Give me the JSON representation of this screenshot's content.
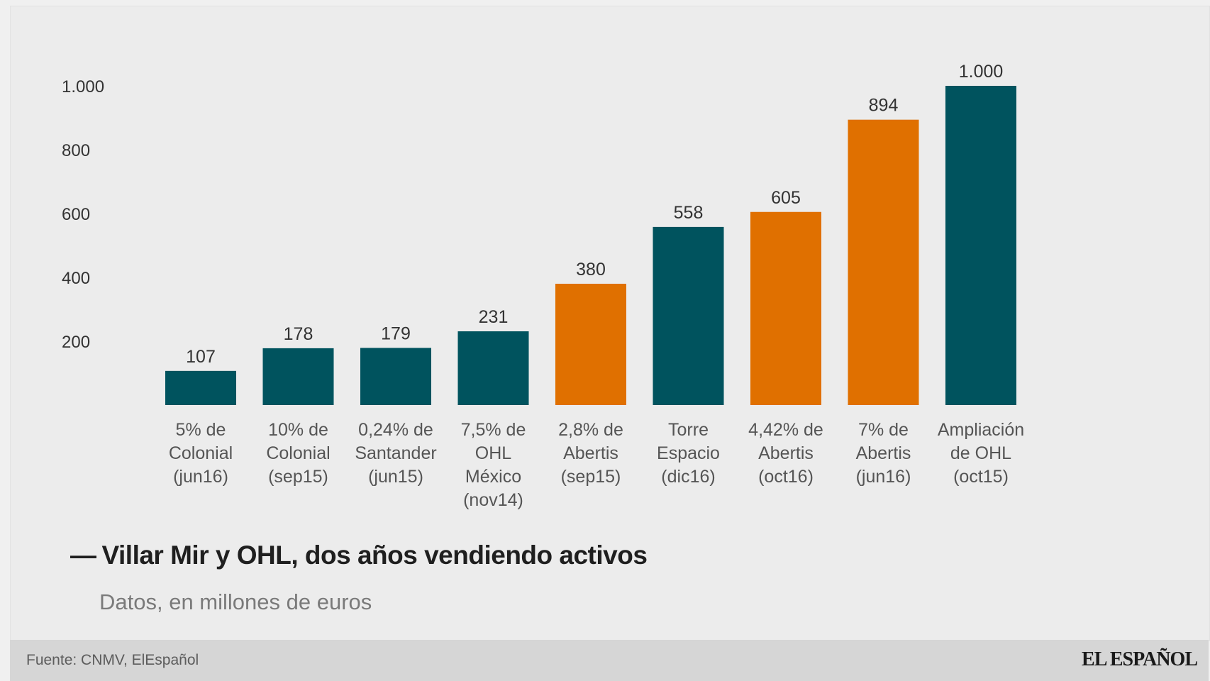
{
  "chart_data": {
    "type": "bar",
    "title": "Villar Mir y OHL, dos años vendiendo activos",
    "subtitle": "Datos, en millones de euros",
    "categories": [
      [
        "5% de",
        "Colonial",
        "(jun16)"
      ],
      [
        "10% de",
        "Colonial",
        "(sep15)"
      ],
      [
        "0,24% de",
        "Santander",
        "(jun15)"
      ],
      [
        "7,5% de",
        "OHL",
        "México",
        "(nov14)"
      ],
      [
        "2,8% de",
        "Abertis",
        "(sep15)"
      ],
      [
        "Torre",
        "Espacio",
        "(dic16)"
      ],
      [
        "4,42% de",
        "Abertis",
        "(oct16)"
      ],
      [
        "7% de",
        "Abertis",
        "(jun16)"
      ],
      [
        "Ampliación",
        "de OHL",
        "(oct15)"
      ]
    ],
    "values": [
      107,
      178,
      179,
      231,
      380,
      558,
      605,
      894,
      1000
    ],
    "value_labels": [
      "107",
      "178",
      "179",
      "231",
      "380",
      "558",
      "605",
      "894",
      "1.000"
    ],
    "bar_colors": [
      "#00535e",
      "#00535e",
      "#00535e",
      "#00535e",
      "#e07000",
      "#00535e",
      "#e07000",
      "#e07000",
      "#00535e"
    ],
    "yticks": [
      {
        "value": 200,
        "label": "200"
      },
      {
        "value": 400,
        "label": "400"
      },
      {
        "value": 600,
        "label": "600"
      },
      {
        "value": 800,
        "label": "800"
      },
      {
        "value": 1000,
        "label": "1.000"
      }
    ],
    "ylim": [
      0,
      1000
    ],
    "grid": false,
    "legend": "none",
    "xlabel": "",
    "ylabel": ""
  },
  "title_dash": "—",
  "footer": {
    "source": "Fuente: CNMV, ElEspañol",
    "logo": "EL ESPAÑOL"
  },
  "colors": {
    "teal": "#00535e",
    "orange": "#e07000",
    "background": "#ececec",
    "footer_bg": "#d6d6d6"
  }
}
